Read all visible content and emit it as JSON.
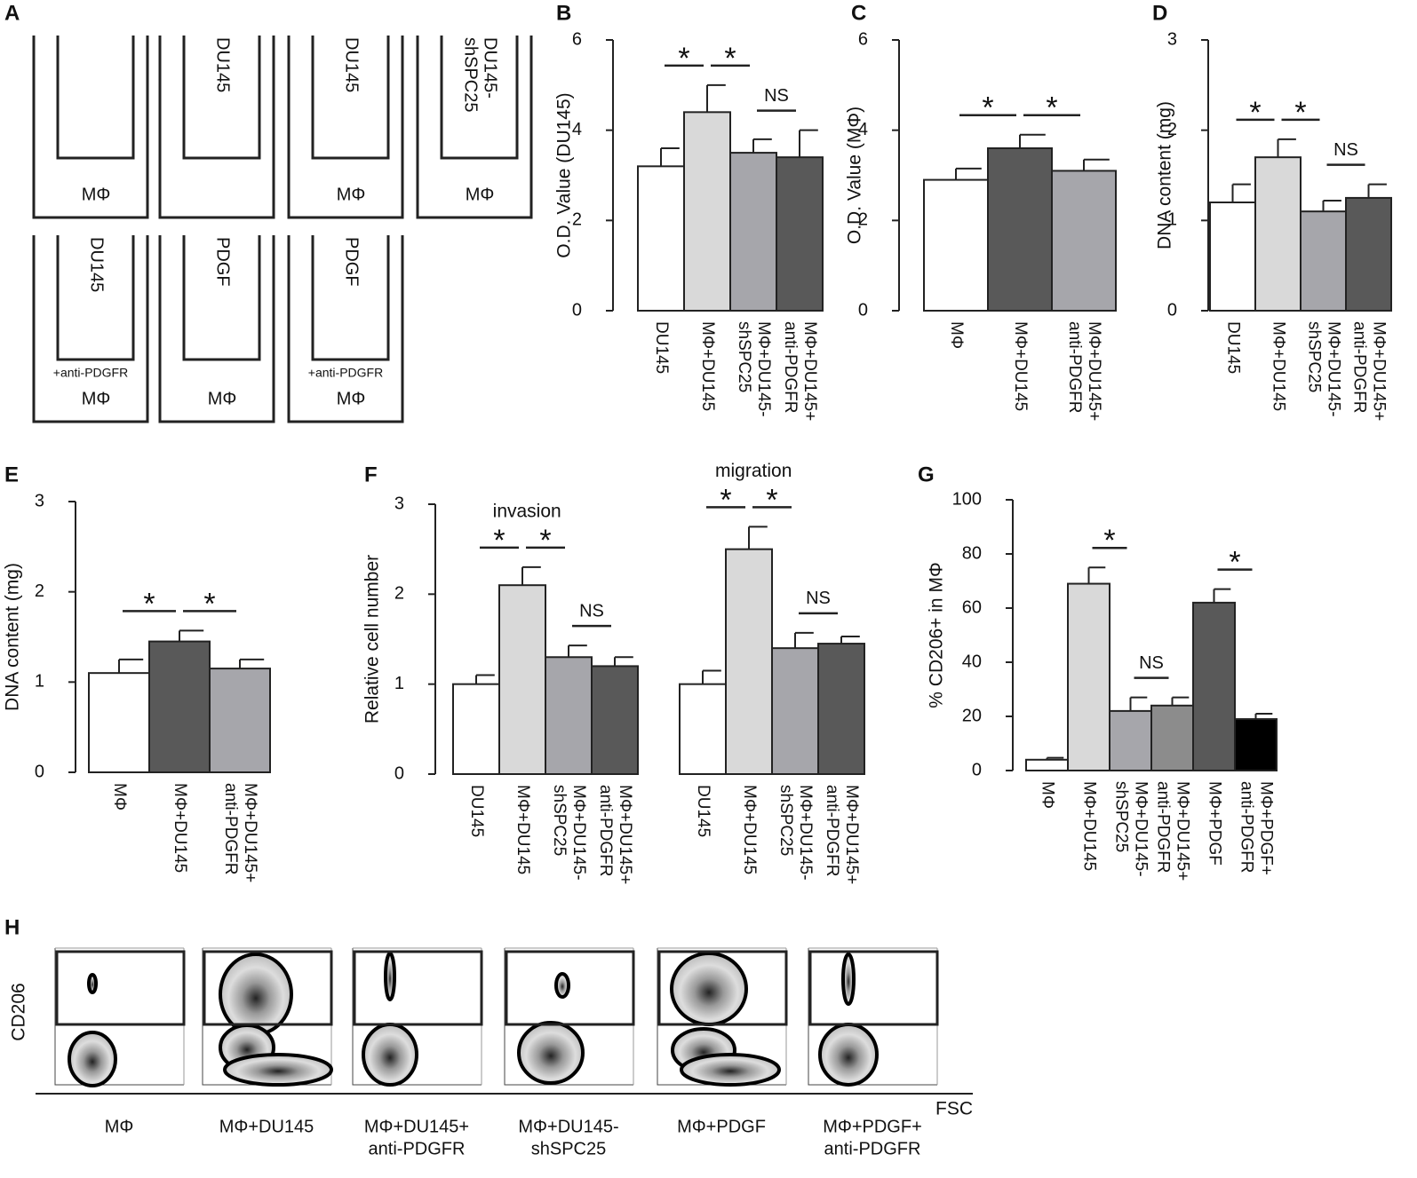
{
  "panel_a": {
    "letter": "A",
    "wells": [
      {
        "bottom": "MΦ"
      },
      {
        "top": [
          "DU145"
        ]
      },
      {
        "top": [
          "DU145"
        ],
        "bottom": "MΦ"
      },
      {
        "top": [
          "DU145-",
          "shSPC25"
        ],
        "bottom": "MΦ"
      },
      {
        "top": [
          "DU145"
        ],
        "note": "+anti-PDGFR",
        "bottom": "MΦ"
      },
      {
        "top": [
          "PDGF"
        ],
        "bottom": "MΦ"
      },
      {
        "top": [
          "PDGF"
        ],
        "note": "+anti-PDGFR",
        "bottom": "MΦ"
      }
    ]
  },
  "chart_data": [
    {
      "type": "bar",
      "letter": "B",
      "ylabel": "O.D. Value (DU145)",
      "ylim": [
        0,
        6
      ],
      "yticks": [
        0,
        2,
        4,
        6
      ],
      "groups": [
        {
          "categories": [
            [
              "DU145"
            ],
            [
              "MΦ+DU145"
            ],
            [
              "MΦ+DU145-",
              "shSPC25"
            ],
            [
              "MΦ+DU145+",
              "anti-PDGFR"
            ]
          ],
          "values": [
            3.2,
            4.4,
            3.5,
            3.4
          ],
          "errors": [
            0.4,
            0.6,
            0.3,
            0.6
          ],
          "colors": [
            "#ffffff",
            "#d9d9d9",
            "#a6a6ab",
            "#595959"
          ],
          "brackets": [
            {
              "from": 0,
              "to": 1,
              "label": "*"
            },
            {
              "from": 1,
              "to": 2,
              "label": "*"
            },
            {
              "from": 2,
              "to": 3,
              "label": "NS"
            }
          ]
        }
      ]
    },
    {
      "type": "bar",
      "letter": "C",
      "ylabel": "O.D. Value (MΦ)",
      "ylim": [
        0,
        6
      ],
      "yticks": [
        0,
        2,
        4,
        6
      ],
      "groups": [
        {
          "categories": [
            [
              "MΦ"
            ],
            [
              "MΦ+DU145"
            ],
            [
              "MΦ+DU145+",
              "anti-PDGFR"
            ]
          ],
          "values": [
            2.9,
            3.6,
            3.1
          ],
          "errors": [
            0.25,
            0.3,
            0.25
          ],
          "colors": [
            "#ffffff",
            "#595959",
            "#a6a6ab"
          ],
          "brackets": [
            {
              "from": 0,
              "to": 1,
              "label": "*"
            },
            {
              "from": 1,
              "to": 2,
              "label": "*"
            }
          ]
        }
      ]
    },
    {
      "type": "bar",
      "letter": "D",
      "ylabel": "DNA content (mg)",
      "ylim": [
        0,
        3
      ],
      "yticks": [
        0,
        1,
        2,
        3
      ],
      "groups": [
        {
          "categories": [
            [
              "DU145"
            ],
            [
              "MΦ+DU145"
            ],
            [
              "MΦ+DU145-",
              "shSPC25"
            ],
            [
              "MΦ+DU145+",
              "anti-PDGFR"
            ]
          ],
          "values": [
            1.2,
            1.7,
            1.1,
            1.25
          ],
          "errors": [
            0.2,
            0.2,
            0.12,
            0.15
          ],
          "colors": [
            "#ffffff",
            "#d9d9d9",
            "#a6a6ab",
            "#595959"
          ],
          "brackets": [
            {
              "from": 0,
              "to": 1,
              "label": "*"
            },
            {
              "from": 1,
              "to": 2,
              "label": "*"
            },
            {
              "from": 2,
              "to": 3,
              "label": "NS"
            }
          ]
        }
      ]
    },
    {
      "type": "bar",
      "letter": "E",
      "ylabel": "DNA content (mg)",
      "ylim": [
        0,
        3
      ],
      "yticks": [
        0,
        1,
        2,
        3
      ],
      "groups": [
        {
          "categories": [
            [
              "MΦ"
            ],
            [
              "MΦ+DU145"
            ],
            [
              "MΦ+DU145+",
              "anti-PDGFR"
            ]
          ],
          "values": [
            1.1,
            1.45,
            1.15
          ],
          "errors": [
            0.15,
            0.12,
            0.1
          ],
          "colors": [
            "#ffffff",
            "#595959",
            "#a6a6ab"
          ],
          "brackets": [
            {
              "from": 0,
              "to": 1,
              "label": "*"
            },
            {
              "from": 1,
              "to": 2,
              "label": "*"
            }
          ]
        }
      ]
    },
    {
      "type": "bar",
      "letter": "F",
      "ylabel": "Relative cell number",
      "ylim": [
        0,
        3
      ],
      "yticks": [
        0,
        1,
        2,
        3
      ],
      "groups": [
        {
          "name": "invasion",
          "categories": [
            [
              "DU145"
            ],
            [
              "MΦ+DU145"
            ],
            [
              "MΦ+DU145-",
              "shSPC25"
            ],
            [
              "MΦ+DU145+",
              "anti-PDGFR"
            ]
          ],
          "values": [
            1.0,
            2.1,
            1.3,
            1.2
          ],
          "errors": [
            0.1,
            0.2,
            0.13,
            0.1
          ],
          "colors": [
            "#ffffff",
            "#d9d9d9",
            "#a6a6ab",
            "#595959"
          ],
          "brackets": [
            {
              "from": 0,
              "to": 1,
              "label": "*"
            },
            {
              "from": 1,
              "to": 2,
              "label": "*"
            },
            {
              "from": 2,
              "to": 3,
              "label": "NS"
            }
          ]
        },
        {
          "name": "migration",
          "categories": [
            [
              "DU145"
            ],
            [
              "MΦ+DU145"
            ],
            [
              "MΦ+DU145-",
              "shSPC25"
            ],
            [
              "MΦ+DU145+",
              "anti-PDGFR"
            ]
          ],
          "values": [
            1.0,
            2.5,
            1.4,
            1.45
          ],
          "errors": [
            0.15,
            0.25,
            0.17,
            0.08
          ],
          "colors": [
            "#ffffff",
            "#d9d9d9",
            "#a6a6ab",
            "#595959"
          ],
          "brackets": [
            {
              "from": 0,
              "to": 1,
              "label": "*"
            },
            {
              "from": 1,
              "to": 2,
              "label": "*"
            },
            {
              "from": 2,
              "to": 3,
              "label": "NS"
            }
          ]
        }
      ]
    },
    {
      "type": "bar",
      "letter": "G",
      "ylabel": "% CD206+ in MΦ",
      "ylim": [
        0,
        100
      ],
      "yticks": [
        0,
        20,
        40,
        60,
        80,
        100
      ],
      "groups": [
        {
          "categories": [
            [
              "MΦ"
            ],
            [
              "MΦ+DU145"
            ],
            [
              "MΦ+DU145-",
              "shSPC25"
            ],
            [
              "MΦ+DU145+",
              "anti-PDGFR"
            ],
            [
              "MΦ+PDGF"
            ],
            [
              "MΦ+PDGF+",
              "anti-PDGFR"
            ]
          ],
          "values": [
            4,
            69,
            22,
            24,
            62,
            19
          ],
          "errors": [
            0.7,
            6,
            5,
            3,
            5,
            2
          ],
          "colors": [
            "#ffffff",
            "#d9d9d9",
            "#a6a6ab",
            "#8c8c8c",
            "#595959",
            "#000000"
          ],
          "brackets": [
            {
              "from": 1,
              "to": 2,
              "label": "*"
            },
            {
              "from": 2,
              "to": 3,
              "label": "NS"
            },
            {
              "from": 4,
              "to": 5,
              "label": "*"
            }
          ]
        }
      ]
    }
  ],
  "panel_h": {
    "letter": "H",
    "ylabel": "CD206",
    "xlabel": "FSC",
    "plots": [
      [
        "MΦ"
      ],
      [
        "MΦ+DU145"
      ],
      [
        "MΦ+DU145+",
        "anti-PDGFR"
      ],
      [
        "MΦ+DU145-",
        "shSPC25"
      ],
      [
        "MΦ+PDGF"
      ],
      [
        "MΦ+PDGF+",
        "anti-PDGFR"
      ]
    ]
  }
}
